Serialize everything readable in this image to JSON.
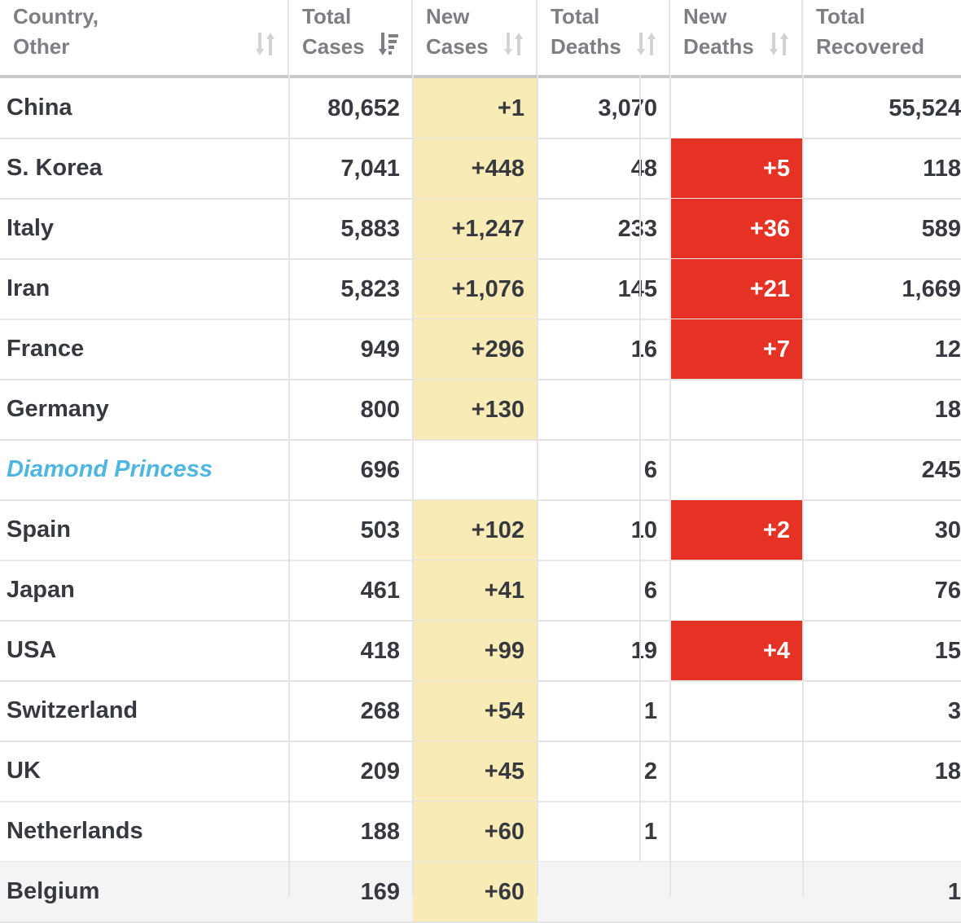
{
  "table": {
    "headers": [
      {
        "line1": "Country,",
        "line2": "Other",
        "sort_icon": "sort-icon"
      },
      {
        "line1": "Total",
        "line2": "Cases",
        "sort_icon": "sort-desc-active-icon"
      },
      {
        "line1": "New",
        "line2": "Cases",
        "sort_icon": "sort-icon"
      },
      {
        "line1": "Total",
        "line2": "Deaths",
        "sort_icon": "sort-icon"
      },
      {
        "line1": "New",
        "line2": "Deaths",
        "sort_icon": "sort-icon"
      },
      {
        "line1": "Total",
        "line2": "Recovered",
        "sort_icon": "sort-icon"
      }
    ],
    "rows": [
      {
        "country": "China",
        "total_cases": "80,652",
        "new_cases": "+1",
        "total_deaths": "3,070",
        "new_deaths": "",
        "total_recovered": "55,524"
      },
      {
        "country": "S. Korea",
        "total_cases": "7,041",
        "new_cases": "+448",
        "total_deaths": "48",
        "new_deaths": "+5",
        "total_recovered": "118"
      },
      {
        "country": "Italy",
        "total_cases": "5,883",
        "new_cases": "+1,247",
        "total_deaths": "233",
        "new_deaths": "+36",
        "total_recovered": "589"
      },
      {
        "country": "Iran",
        "total_cases": "5,823",
        "new_cases": "+1,076",
        "total_deaths": "145",
        "new_deaths": "+21",
        "total_recovered": "1,669"
      },
      {
        "country": "France",
        "total_cases": "949",
        "new_cases": "+296",
        "total_deaths": "16",
        "new_deaths": "+7",
        "total_recovered": "12"
      },
      {
        "country": "Germany",
        "total_cases": "800",
        "new_cases": "+130",
        "total_deaths": "",
        "new_deaths": "",
        "total_recovered": "18"
      },
      {
        "country": "Diamond Princess",
        "total_cases": "696",
        "new_cases": "",
        "total_deaths": "6",
        "new_deaths": "",
        "total_recovered": "245",
        "italic_link": true
      },
      {
        "country": "Spain",
        "total_cases": "503",
        "new_cases": "+102",
        "total_deaths": "10",
        "new_deaths": "+2",
        "total_recovered": "30"
      },
      {
        "country": "Japan",
        "total_cases": "461",
        "new_cases": "+41",
        "total_deaths": "6",
        "new_deaths": "",
        "total_recovered": "76"
      },
      {
        "country": "USA",
        "total_cases": "418",
        "new_cases": "+99",
        "total_deaths": "19",
        "new_deaths": "+4",
        "total_recovered": "15"
      },
      {
        "country": "Switzerland",
        "total_cases": "268",
        "new_cases": "+54",
        "total_deaths": "1",
        "new_deaths": "",
        "total_recovered": "3"
      },
      {
        "country": "UK",
        "total_cases": "209",
        "new_cases": "+45",
        "total_deaths": "2",
        "new_deaths": "",
        "total_recovered": "18"
      },
      {
        "country": "Netherlands",
        "total_cases": "188",
        "new_cases": "+60",
        "total_deaths": "1",
        "new_deaths": "",
        "total_recovered": ""
      },
      {
        "country": "Belgium",
        "total_cases": "169",
        "new_cases": "+60",
        "total_deaths": "",
        "new_deaths": "",
        "total_recovered": "1",
        "gray": true
      }
    ]
  },
  "colors": {
    "new_cases_bg": "#f8ebb5",
    "new_deaths_bg": "#e53225",
    "link_text": "#4fb6e0",
    "header_text": "#7d7f84",
    "body_text": "#363940"
  }
}
